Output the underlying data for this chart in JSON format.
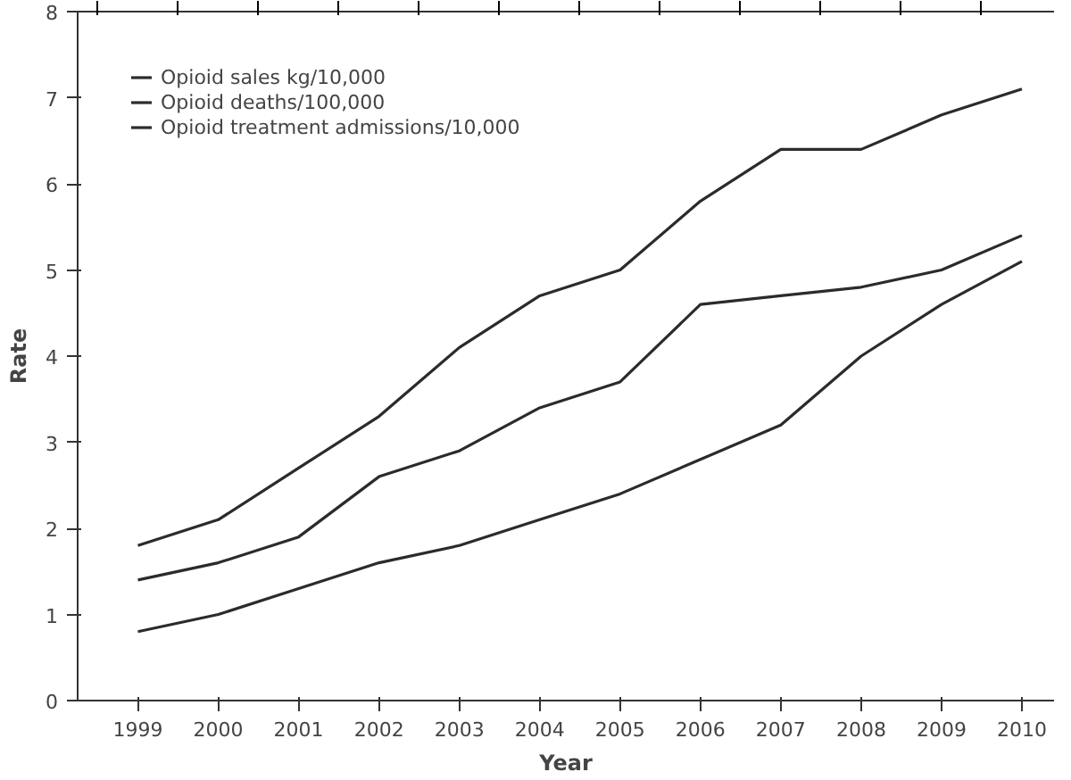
{
  "chart_data": {
    "type": "line",
    "xlabel": "Year",
    "ylabel": "Rate",
    "categories": [
      "1999",
      "2000",
      "2001",
      "2002",
      "2003",
      "2004",
      "2005",
      "2006",
      "2007",
      "2008",
      "2009",
      "2010"
    ],
    "series": [
      {
        "name": "Opioid sales kg/10,000",
        "color": "#2b2b2b",
        "values": [
          1.8,
          2.1,
          2.7,
          3.3,
          4.1,
          4.7,
          5.0,
          5.8,
          6.4,
          6.4,
          6.8,
          7.1
        ]
      },
      {
        "name": "Opioid deaths/100,000",
        "color": "#2b2b2b",
        "values": [
          1.4,
          1.6,
          1.9,
          2.6,
          2.9,
          3.4,
          3.7,
          4.6,
          4.7,
          4.8,
          5.0,
          5.4
        ]
      },
      {
        "name": "Opioid treatment admissions/10,000",
        "color": "#2b2b2b",
        "values": [
          0.8,
          1.0,
          1.3,
          1.6,
          1.8,
          2.1,
          2.4,
          2.8,
          3.2,
          4.0,
          4.6,
          5.1
        ]
      }
    ],
    "ylim": [
      0,
      8
    ],
    "yticks": [
      0,
      1,
      2,
      3,
      4,
      5,
      6,
      7,
      8
    ],
    "grid": false,
    "legend": "top left",
    "marker": "none",
    "line_style": "solid"
  }
}
